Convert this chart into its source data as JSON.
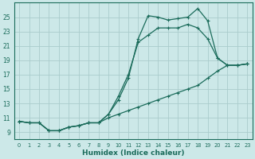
{
  "xlabel": "Humidex (Indice chaleur)",
  "background_color": "#cce8e8",
  "line_color": "#1a6b5a",
  "grid_color": "#aacccc",
  "xlim": [
    -0.5,
    23.5
  ],
  "ylim": [
    8,
    27
  ],
  "xticks": [
    0,
    1,
    2,
    3,
    4,
    5,
    6,
    7,
    8,
    9,
    10,
    11,
    12,
    13,
    14,
    15,
    16,
    17,
    18,
    19,
    20,
    21,
    22,
    23
  ],
  "yticks": [
    9,
    11,
    13,
    15,
    17,
    19,
    21,
    23,
    25
  ],
  "line1_x": [
    0,
    1,
    2,
    3,
    4,
    5,
    6,
    7,
    8,
    9,
    10,
    11,
    12,
    13,
    14,
    15,
    16,
    17,
    18,
    19,
    20,
    21,
    22,
    23
  ],
  "line1_y": [
    10.5,
    10.3,
    10.3,
    9.2,
    9.2,
    9.7,
    9.9,
    10.3,
    10.3,
    11.5,
    13.5,
    16.5,
    22.0,
    25.2,
    25.0,
    24.6,
    24.8,
    25.0,
    26.2,
    24.5,
    19.3,
    18.3,
    18.3,
    18.5
  ],
  "line2_x": [
    0,
    1,
    2,
    3,
    4,
    5,
    6,
    7,
    8,
    9,
    10,
    11,
    12,
    13,
    14,
    15,
    16,
    17,
    18,
    19,
    20,
    21,
    22,
    23
  ],
  "line2_y": [
    10.5,
    10.3,
    10.3,
    9.2,
    9.2,
    9.7,
    9.9,
    10.3,
    10.3,
    11.5,
    14.0,
    17.0,
    21.5,
    22.5,
    23.5,
    23.5,
    23.5,
    24.0,
    23.5,
    22.0,
    19.3,
    18.3,
    18.3,
    18.5
  ],
  "line3_x": [
    0,
    1,
    2,
    3,
    4,
    5,
    6,
    7,
    8,
    9,
    10,
    11,
    12,
    13,
    14,
    15,
    16,
    17,
    18,
    19,
    20,
    21,
    22,
    23
  ],
  "line3_y": [
    10.5,
    10.3,
    10.3,
    9.2,
    9.2,
    9.7,
    9.9,
    10.3,
    10.3,
    11.0,
    11.5,
    12.0,
    12.5,
    13.0,
    13.5,
    14.0,
    14.5,
    15.0,
    15.5,
    16.5,
    17.5,
    18.3,
    18.3,
    18.5
  ]
}
